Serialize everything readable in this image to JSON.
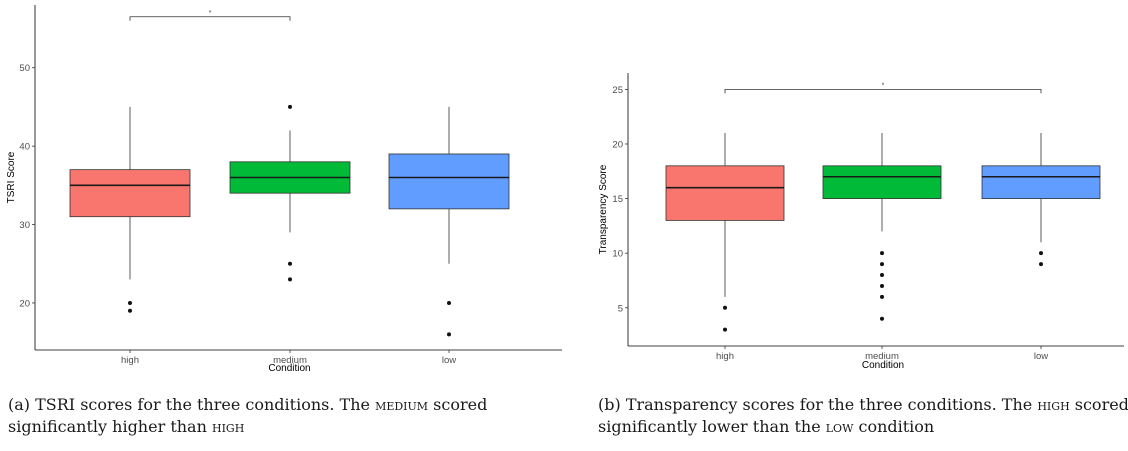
{
  "chart_data": [
    {
      "type": "box",
      "ylabel": "TSRI Score",
      "xlabel": "Condition",
      "ylim": [
        14,
        58
      ],
      "yticks": [
        20,
        30,
        40,
        50
      ],
      "categories": [
        "high",
        "medium",
        "low"
      ],
      "boxes": [
        {
          "category": "high",
          "q1": 31,
          "median": 35,
          "q3": 37,
          "whisker_low": 23,
          "whisker_high": 45,
          "outliers": [
            20,
            19
          ],
          "color": "#F8766D"
        },
        {
          "category": "medium",
          "q1": 34,
          "median": 36,
          "q3": 38,
          "whisker_low": 29,
          "whisker_high": 42,
          "outliers": [
            45,
            25,
            23
          ],
          "color": "#00BA38"
        },
        {
          "category": "low",
          "q1": 32,
          "median": 36,
          "q3": 39,
          "whisker_low": 25,
          "whisker_high": 45,
          "outliers": [
            20,
            16
          ],
          "color": "#619CFF"
        }
      ],
      "significance": {
        "from": "high",
        "to": "medium",
        "y": 56.5,
        "label": "*"
      },
      "grid": false
    },
    {
      "type": "box",
      "ylabel": "Transparency Score",
      "xlabel": "Condition",
      "ylim": [
        1.5,
        26.5
      ],
      "yticks": [
        5,
        10,
        15,
        20,
        25
      ],
      "categories": [
        "high",
        "medium",
        "low"
      ],
      "boxes": [
        {
          "category": "high",
          "q1": 13,
          "median": 16,
          "q3": 18,
          "whisker_low": 6,
          "whisker_high": 21,
          "outliers": [
            5,
            3
          ],
          "color": "#F8766D"
        },
        {
          "category": "medium",
          "q1": 15,
          "median": 17,
          "q3": 18,
          "whisker_low": 12,
          "whisker_high": 21,
          "outliers": [
            10,
            9,
            8,
            7,
            6,
            4
          ],
          "color": "#00BA38"
        },
        {
          "category": "low",
          "q1": 15,
          "median": 17,
          "q3": 18,
          "whisker_low": 11,
          "whisker_high": 21,
          "outliers": [
            10,
            9
          ],
          "color": "#619CFF"
        }
      ],
      "significance": {
        "from": "high",
        "to": "low",
        "y": 25,
        "label": "*"
      },
      "grid": false
    }
  ],
  "captions": {
    "a": {
      "prefix": "(a) TSRI scores for the three conditions. The ",
      "term1": "medium",
      "middle": " scored significantly higher than ",
      "term2": "high",
      "suffix": ""
    },
    "b": {
      "prefix": "(b) Transparency scores for the three conditions. The ",
      "term1": "high",
      "middle": " scored significantly lower than the ",
      "term2": "low",
      "suffix": " condition"
    }
  }
}
